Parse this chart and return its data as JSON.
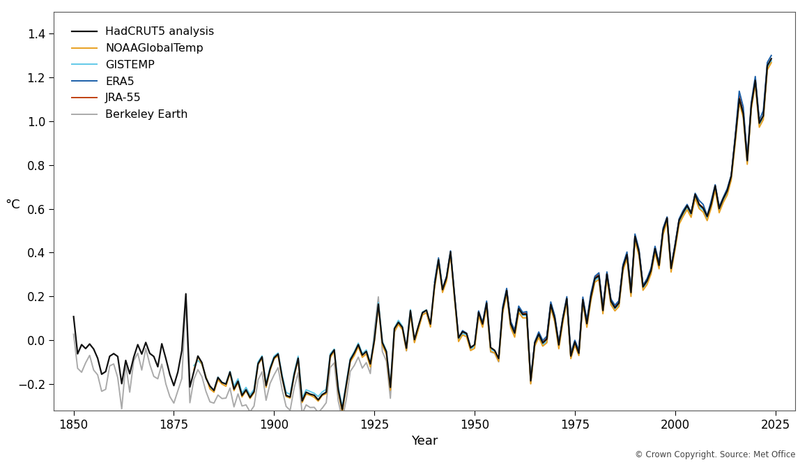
{
  "title": "",
  "xlabel": "Year",
  "ylabel": "°C",
  "copyright_text": "© Crown Copyright. Source: Met Office",
  "xlim": [
    1845,
    2030
  ],
  "ylim": [
    -0.32,
    1.5
  ],
  "yticks": [
    -0.2,
    0.0,
    0.2,
    0.4,
    0.6,
    0.8,
    1.0,
    1.2,
    1.4
  ],
  "xticks": [
    1850,
    1875,
    1900,
    1925,
    1950,
    1975,
    2000,
    2025
  ],
  "series": {
    "HadCRUT5 analysis": {
      "color": "#111111",
      "lw": 1.6,
      "zorder": 6
    },
    "NOAAGlobalTemp": {
      "color": "#e8a020",
      "lw": 1.4,
      "zorder": 5
    },
    "GISTEMP": {
      "color": "#60c8e8",
      "lw": 1.4,
      "zorder": 4
    },
    "ERA5": {
      "color": "#1a5fa8",
      "lw": 1.4,
      "zorder": 4
    },
    "JRA-55": {
      "color": "#c04010",
      "lw": 1.4,
      "zorder": 4
    },
    "Berkeley Earth": {
      "color": "#aaaaaa",
      "lw": 1.4,
      "zorder": 3
    }
  },
  "hadcrut5_years": [
    1850,
    1851,
    1852,
    1853,
    1854,
    1855,
    1856,
    1857,
    1858,
    1859,
    1860,
    1861,
    1862,
    1863,
    1864,
    1865,
    1866,
    1867,
    1868,
    1869,
    1870,
    1871,
    1872,
    1873,
    1874,
    1875,
    1876,
    1877,
    1878,
    1879,
    1880,
    1881,
    1882,
    1883,
    1884,
    1885,
    1886,
    1887,
    1888,
    1889,
    1890,
    1891,
    1892,
    1893,
    1894,
    1895,
    1896,
    1897,
    1898,
    1899,
    1900,
    1901,
    1902,
    1903,
    1904,
    1905,
    1906,
    1907,
    1908,
    1909,
    1910,
    1911,
    1912,
    1913,
    1914,
    1915,
    1916,
    1917,
    1918,
    1919,
    1920,
    1921,
    1922,
    1923,
    1924,
    1925,
    1926,
    1927,
    1928,
    1929,
    1930,
    1931,
    1932,
    1933,
    1934,
    1935,
    1936,
    1937,
    1938,
    1939,
    1940,
    1941,
    1942,
    1943,
    1944,
    1945,
    1946,
    1947,
    1948,
    1949,
    1950,
    1951,
    1952,
    1953,
    1954,
    1955,
    1956,
    1957,
    1958,
    1959,
    1960,
    1961,
    1962,
    1963,
    1964,
    1965,
    1966,
    1967,
    1968,
    1969,
    1970,
    1971,
    1972,
    1973,
    1974,
    1975,
    1976,
    1977,
    1978,
    1979,
    1980,
    1981,
    1982,
    1983,
    1984,
    1985,
    1986,
    1987,
    1988,
    1989,
    1990,
    1991,
    1992,
    1993,
    1994,
    1995,
    1996,
    1997,
    1998,
    1999,
    2000,
    2001,
    2002,
    2003,
    2004,
    2005,
    2006,
    2007,
    2008,
    2009,
    2010,
    2011,
    2012,
    2013,
    2014,
    2015,
    2016,
    2017,
    2018,
    2019,
    2020,
    2021,
    2022,
    2023,
    2024
  ],
  "hadcrut5_vals": [
    0.108,
    -0.062,
    -0.02,
    -0.038,
    -0.017,
    -0.04,
    -0.082,
    -0.155,
    -0.143,
    -0.073,
    -0.061,
    -0.074,
    -0.198,
    -0.092,
    -0.153,
    -0.077,
    -0.02,
    -0.063,
    -0.01,
    -0.06,
    -0.074,
    -0.121,
    -0.016,
    -0.083,
    -0.156,
    -0.207,
    -0.145,
    -0.046,
    0.212,
    -0.213,
    -0.143,
    -0.072,
    -0.102,
    -0.173,
    -0.209,
    -0.229,
    -0.17,
    -0.193,
    -0.2,
    -0.145,
    -0.223,
    -0.187,
    -0.252,
    -0.226,
    -0.261,
    -0.234,
    -0.107,
    -0.076,
    -0.207,
    -0.131,
    -0.08,
    -0.063,
    -0.168,
    -0.252,
    -0.259,
    -0.158,
    -0.082,
    -0.277,
    -0.237,
    -0.246,
    -0.251,
    -0.272,
    -0.248,
    -0.237,
    -0.07,
    -0.044,
    -0.225,
    -0.316,
    -0.202,
    -0.09,
    -0.058,
    -0.02,
    -0.068,
    -0.051,
    -0.108,
    0.0,
    0.165,
    -0.011,
    -0.052,
    -0.215,
    0.053,
    0.082,
    0.059,
    -0.036,
    0.135,
    0.003,
    0.066,
    0.126,
    0.137,
    0.074,
    0.25,
    0.368,
    0.231,
    0.286,
    0.404,
    0.203,
    0.011,
    0.039,
    0.031,
    -0.034,
    -0.02,
    0.128,
    0.074,
    0.17,
    -0.033,
    -0.046,
    -0.083,
    0.14,
    0.227,
    0.075,
    0.033,
    0.144,
    0.118,
    0.119,
    -0.185,
    -0.013,
    0.028,
    -0.012,
    0.005,
    0.163,
    0.099,
    -0.021,
    0.098,
    0.19,
    -0.072,
    -0.008,
    -0.059,
    0.185,
    0.076,
    0.198,
    0.282,
    0.294,
    0.136,
    0.302,
    0.178,
    0.148,
    0.17,
    0.334,
    0.391,
    0.218,
    0.474,
    0.403,
    0.244,
    0.271,
    0.318,
    0.418,
    0.342,
    0.501,
    0.558,
    0.328,
    0.431,
    0.547,
    0.583,
    0.614,
    0.579,
    0.666,
    0.619,
    0.603,
    0.565,
    0.621,
    0.705,
    0.601,
    0.646,
    0.682,
    0.749,
    0.92,
    1.102,
    1.035,
    0.82,
    1.072,
    1.186,
    0.991,
    1.025,
    1.253,
    1.285
  ],
  "noaa_years": [
    1880,
    1881,
    1882,
    1883,
    1884,
    1885,
    1886,
    1887,
    1888,
    1889,
    1890,
    1891,
    1892,
    1893,
    1894,
    1895,
    1896,
    1897,
    1898,
    1899,
    1900,
    1901,
    1902,
    1903,
    1904,
    1905,
    1906,
    1907,
    1908,
    1909,
    1910,
    1911,
    1912,
    1913,
    1914,
    1915,
    1916,
    1917,
    1918,
    1919,
    1920,
    1921,
    1922,
    1923,
    1924,
    1925,
    1926,
    1927,
    1928,
    1929,
    1930,
    1931,
    1932,
    1933,
    1934,
    1935,
    1936,
    1937,
    1938,
    1939,
    1940,
    1941,
    1942,
    1943,
    1944,
    1945,
    1946,
    1947,
    1948,
    1949,
    1950,
    1951,
    1952,
    1953,
    1954,
    1955,
    1956,
    1957,
    1958,
    1959,
    1960,
    1961,
    1962,
    1963,
    1964,
    1965,
    1966,
    1967,
    1968,
    1969,
    1970,
    1971,
    1972,
    1973,
    1974,
    1975,
    1976,
    1977,
    1978,
    1979,
    1980,
    1981,
    1982,
    1983,
    1984,
    1985,
    1986,
    1987,
    1988,
    1989,
    1990,
    1991,
    1992,
    1993,
    1994,
    1995,
    1996,
    1997,
    1998,
    1999,
    2000,
    2001,
    2002,
    2003,
    2004,
    2005,
    2006,
    2007,
    2008,
    2009,
    2010,
    2011,
    2012,
    2013,
    2014,
    2015,
    2016,
    2017,
    2018,
    2019,
    2020,
    2021,
    2022,
    2023,
    2024
  ],
  "noaa_vals": [
    -0.135,
    -0.075,
    -0.11,
    -0.167,
    -0.222,
    -0.237,
    -0.18,
    -0.2,
    -0.21,
    -0.15,
    -0.23,
    -0.193,
    -0.259,
    -0.231,
    -0.266,
    -0.24,
    -0.111,
    -0.082,
    -0.215,
    -0.138,
    -0.085,
    -0.07,
    -0.173,
    -0.257,
    -0.264,
    -0.163,
    -0.088,
    -0.284,
    -0.246,
    -0.251,
    -0.26,
    -0.278,
    -0.252,
    -0.244,
    -0.08,
    -0.051,
    -0.234,
    -0.33,
    -0.211,
    -0.099,
    -0.07,
    -0.029,
    -0.078,
    -0.062,
    -0.122,
    -0.009,
    0.155,
    -0.022,
    -0.064,
    -0.228,
    0.04,
    0.072,
    0.049,
    -0.047,
    0.122,
    -0.011,
    0.051,
    0.115,
    0.126,
    0.06,
    0.235,
    0.356,
    0.218,
    0.27,
    0.391,
    0.188,
    -0.006,
    0.024,
    0.016,
    -0.047,
    -0.037,
    0.111,
    0.059,
    0.152,
    -0.05,
    -0.058,
    -0.096,
    0.123,
    0.212,
    0.058,
    0.014,
    0.127,
    0.102,
    0.102,
    -0.199,
    -0.027,
    0.012,
    -0.027,
    -0.012,
    0.148,
    0.083,
    -0.039,
    0.08,
    0.173,
    -0.084,
    -0.022,
    -0.07,
    0.17,
    0.059,
    0.18,
    0.265,
    0.277,
    0.121,
    0.283,
    0.162,
    0.134,
    0.154,
    0.316,
    0.374,
    0.2,
    0.456,
    0.385,
    0.228,
    0.254,
    0.302,
    0.4,
    0.326,
    0.482,
    0.54,
    0.311,
    0.414,
    0.529,
    0.565,
    0.596,
    0.561,
    0.648,
    0.601,
    0.585,
    0.546,
    0.603,
    0.686,
    0.582,
    0.628,
    0.663,
    0.731,
    0.899,
    1.083,
    1.017,
    0.803,
    1.054,
    1.168,
    0.972,
    1.007,
    1.234,
    1.267
  ],
  "gistemp_years": [
    1880,
    1881,
    1882,
    1883,
    1884,
    1885,
    1886,
    1887,
    1888,
    1889,
    1890,
    1891,
    1892,
    1893,
    1894,
    1895,
    1896,
    1897,
    1898,
    1899,
    1900,
    1901,
    1902,
    1903,
    1904,
    1905,
    1906,
    1907,
    1908,
    1909,
    1910,
    1911,
    1912,
    1913,
    1914,
    1915,
    1916,
    1917,
    1918,
    1919,
    1920,
    1921,
    1922,
    1923,
    1924,
    1925,
    1926,
    1927,
    1928,
    1929,
    1930,
    1931,
    1932,
    1933,
    1934,
    1935,
    1936,
    1937,
    1938,
    1939,
    1940,
    1941,
    1942,
    1943,
    1944,
    1945,
    1946,
    1947,
    1948,
    1949,
    1950,
    1951,
    1952,
    1953,
    1954,
    1955,
    1956,
    1957,
    1958,
    1959,
    1960,
    1961,
    1962,
    1963,
    1964,
    1965,
    1966,
    1967,
    1968,
    1969,
    1970,
    1971,
    1972,
    1973,
    1974,
    1975,
    1976,
    1977,
    1978,
    1979,
    1980,
    1981,
    1982,
    1983,
    1984,
    1985,
    1986,
    1987,
    1988,
    1989,
    1990,
    1991,
    1992,
    1993,
    1994,
    1995,
    1996,
    1997,
    1998,
    1999,
    2000,
    2001,
    2002,
    2003,
    2004,
    2005,
    2006,
    2007,
    2008,
    2009,
    2010,
    2011,
    2012,
    2013,
    2014,
    2015,
    2016,
    2017,
    2018,
    2019,
    2020,
    2021,
    2022,
    2023,
    2024
  ],
  "gistemp_vals": [
    -0.116,
    -0.092,
    -0.109,
    -0.166,
    -0.216,
    -0.228,
    -0.168,
    -0.192,
    -0.198,
    -0.142,
    -0.209,
    -0.176,
    -0.241,
    -0.215,
    -0.249,
    -0.224,
    -0.099,
    -0.071,
    -0.199,
    -0.124,
    -0.073,
    -0.058,
    -0.158,
    -0.238,
    -0.247,
    -0.148,
    -0.073,
    -0.263,
    -0.226,
    -0.234,
    -0.242,
    -0.257,
    -0.236,
    -0.224,
    -0.062,
    -0.04,
    -0.213,
    -0.305,
    -0.193,
    -0.083,
    -0.052,
    -0.013,
    -0.061,
    -0.044,
    -0.104,
    0.009,
    0.172,
    -0.005,
    -0.047,
    -0.211,
    0.056,
    0.091,
    0.064,
    -0.033,
    0.14,
    -0.001,
    0.063,
    0.129,
    0.139,
    0.068,
    0.25,
    0.37,
    0.232,
    0.281,
    0.403,
    0.196,
    -0.001,
    0.031,
    0.024,
    -0.039,
    -0.027,
    0.122,
    0.072,
    0.163,
    -0.041,
    -0.05,
    -0.087,
    0.135,
    0.219,
    0.066,
    0.024,
    0.14,
    0.115,
    0.112,
    -0.19,
    -0.018,
    0.025,
    -0.02,
    -0.005,
    0.157,
    0.091,
    -0.028,
    0.09,
    0.181,
    -0.075,
    -0.015,
    -0.062,
    0.177,
    0.067,
    0.19,
    0.273,
    0.286,
    0.131,
    0.292,
    0.172,
    0.144,
    0.163,
    0.326,
    0.383,
    0.21,
    0.465,
    0.395,
    0.237,
    0.264,
    0.312,
    0.41,
    0.335,
    0.491,
    0.549,
    0.321,
    0.424,
    0.538,
    0.573,
    0.604,
    0.57,
    0.658,
    0.61,
    0.595,
    0.556,
    0.613,
    0.695,
    0.591,
    0.638,
    0.673,
    0.741,
    0.91,
    1.093,
    1.026,
    0.812,
    1.063,
    1.177,
    0.982,
    1.017,
    1.244,
    1.276
  ],
  "era5_years": [
    1940,
    1941,
    1942,
    1943,
    1944,
    1945,
    1946,
    1947,
    1948,
    1949,
    1950,
    1951,
    1952,
    1953,
    1954,
    1955,
    1956,
    1957,
    1958,
    1959,
    1960,
    1961,
    1962,
    1963,
    1964,
    1965,
    1966,
    1967,
    1968,
    1969,
    1970,
    1971,
    1972,
    1973,
    1974,
    1975,
    1976,
    1977,
    1978,
    1979,
    1980,
    1981,
    1982,
    1983,
    1984,
    1985,
    1986,
    1987,
    1988,
    1989,
    1990,
    1991,
    1992,
    1993,
    1994,
    1995,
    1996,
    1997,
    1998,
    1999,
    2000,
    2001,
    2002,
    2003,
    2004,
    2005,
    2006,
    2007,
    2008,
    2009,
    2010,
    2011,
    2012,
    2013,
    2014,
    2015,
    2016,
    2017,
    2018,
    2019,
    2020,
    2021,
    2022,
    2023,
    2024
  ],
  "era5_vals": [
    0.265,
    0.376,
    0.237,
    0.291,
    0.408,
    0.204,
    0.01,
    0.044,
    0.032,
    -0.032,
    -0.024,
    0.134,
    0.081,
    0.179,
    -0.038,
    -0.05,
    -0.088,
    0.152,
    0.237,
    0.086,
    0.046,
    0.156,
    0.127,
    0.131,
    -0.183,
    -0.007,
    0.038,
    -0.001,
    0.018,
    0.175,
    0.112,
    -0.01,
    0.104,
    0.199,
    -0.059,
    -0.0,
    -0.044,
    0.197,
    0.091,
    0.214,
    0.292,
    0.308,
    0.151,
    0.312,
    0.188,
    0.16,
    0.181,
    0.345,
    0.403,
    0.231,
    0.485,
    0.415,
    0.251,
    0.281,
    0.329,
    0.429,
    0.352,
    0.512,
    0.563,
    0.335,
    0.44,
    0.554,
    0.592,
    0.62,
    0.583,
    0.671,
    0.638,
    0.62,
    0.569,
    0.636,
    0.71,
    0.61,
    0.652,
    0.692,
    0.754,
    0.934,
    1.137,
    1.065,
    0.835,
    1.085,
    1.204,
    1.005,
    1.048,
    1.268,
    1.3
  ],
  "jra55_years": [
    1958,
    1959,
    1960,
    1961,
    1962,
    1963,
    1964,
    1965,
    1966,
    1967,
    1968,
    1969,
    1970,
    1971,
    1972,
    1973,
    1974,
    1975,
    1976,
    1977,
    1978,
    1979,
    1980,
    1981,
    1982,
    1983,
    1984,
    1985,
    1986,
    1987,
    1988,
    1989,
    1990,
    1991,
    1992,
    1993,
    1994,
    1995,
    1996,
    1997,
    1998,
    1999,
    2000,
    2001,
    2002,
    2003,
    2004,
    2005,
    2006,
    2007,
    2008,
    2009,
    2010,
    2011,
    2012,
    2013,
    2014,
    2015,
    2016,
    2017,
    2018,
    2019,
    2020,
    2021,
    2022,
    2023
  ],
  "jra55_vals": [
    0.231,
    0.082,
    0.041,
    0.15,
    0.121,
    0.125,
    -0.191,
    -0.011,
    0.03,
    -0.01,
    0.01,
    0.165,
    0.103,
    -0.017,
    0.097,
    0.185,
    -0.072,
    -0.004,
    -0.052,
    0.189,
    0.083,
    0.202,
    0.287,
    0.302,
    0.148,
    0.306,
    0.183,
    0.153,
    0.174,
    0.338,
    0.395,
    0.221,
    0.477,
    0.406,
    0.247,
    0.274,
    0.321,
    0.422,
    0.344,
    0.504,
    0.56,
    0.33,
    0.434,
    0.55,
    0.586,
    0.616,
    0.581,
    0.665,
    0.622,
    0.605,
    0.562,
    0.624,
    0.703,
    0.604,
    0.645,
    0.683,
    0.749,
    0.926,
    1.115,
    1.041,
    0.829,
    1.068,
    1.187,
    0.991,
    1.022,
    1.253
  ],
  "berkeley_years": [
    1850,
    1851,
    1852,
    1853,
    1854,
    1855,
    1856,
    1857,
    1858,
    1859,
    1860,
    1861,
    1862,
    1863,
    1864,
    1865,
    1866,
    1867,
    1868,
    1869,
    1870,
    1871,
    1872,
    1873,
    1874,
    1875,
    1876,
    1877,
    1878,
    1879,
    1880,
    1881,
    1882,
    1883,
    1884,
    1885,
    1886,
    1887,
    1888,
    1889,
    1890,
    1891,
    1892,
    1893,
    1894,
    1895,
    1896,
    1897,
    1898,
    1899,
    1900,
    1901,
    1902,
    1903,
    1904,
    1905,
    1906,
    1907,
    1908,
    1909,
    1910,
    1911,
    1912,
    1913,
    1914,
    1915,
    1916,
    1917,
    1918,
    1919,
    1920,
    1921,
    1922,
    1923,
    1924,
    1925,
    1926,
    1927,
    1928,
    1929,
    1930,
    1931,
    1932,
    1933,
    1934,
    1935,
    1936,
    1937,
    1938,
    1939,
    1940,
    1941,
    1942,
    1943,
    1944,
    1945,
    1946,
    1947,
    1948,
    1949,
    1950,
    1951,
    1952,
    1953,
    1954,
    1955,
    1956,
    1957,
    1958,
    1959,
    1960,
    1961,
    1962,
    1963,
    1964,
    1965,
    1966,
    1967,
    1968,
    1969,
    1970,
    1971,
    1972,
    1973,
    1974,
    1975,
    1976,
    1977,
    1978,
    1979,
    1980,
    1981,
    1982,
    1983,
    1984,
    1985,
    1986,
    1987,
    1988,
    1989,
    1990,
    1991,
    1992,
    1993,
    1994,
    1995,
    1996,
    1997,
    1998,
    1999,
    2000,
    2001,
    2002,
    2003,
    2004,
    2005,
    2006,
    2007,
    2008,
    2009,
    2010,
    2011,
    2012,
    2013,
    2014,
    2015,
    2016,
    2017,
    2018,
    2019,
    2020,
    2021,
    2022,
    2023,
    2024
  ],
  "berkeley_vals": [
    0.028,
    -0.128,
    -0.146,
    -0.103,
    -0.069,
    -0.136,
    -0.158,
    -0.233,
    -0.224,
    -0.117,
    -0.108,
    -0.17,
    -0.313,
    -0.109,
    -0.237,
    -0.093,
    -0.059,
    -0.136,
    -0.037,
    -0.11,
    -0.165,
    -0.176,
    -0.109,
    -0.199,
    -0.257,
    -0.287,
    -0.23,
    -0.174,
    0.188,
    -0.285,
    -0.178,
    -0.134,
    -0.166,
    -0.233,
    -0.281,
    -0.287,
    -0.25,
    -0.266,
    -0.264,
    -0.218,
    -0.304,
    -0.245,
    -0.3,
    -0.295,
    -0.327,
    -0.3,
    -0.181,
    -0.144,
    -0.274,
    -0.197,
    -0.158,
    -0.125,
    -0.225,
    -0.302,
    -0.32,
    -0.218,
    -0.148,
    -0.335,
    -0.295,
    -0.307,
    -0.306,
    -0.33,
    -0.31,
    -0.285,
    -0.124,
    -0.103,
    -0.277,
    -0.359,
    -0.271,
    -0.142,
    -0.115,
    -0.077,
    -0.127,
    -0.102,
    -0.152,
    0.043,
    0.198,
    -0.052,
    -0.095,
    -0.265,
    0.036,
    0.074,
    0.054,
    -0.049,
    0.13,
    -0.009,
    0.053,
    0.124,
    0.124,
    0.064,
    0.247,
    0.366,
    0.229,
    0.286,
    0.401,
    0.204,
    0.006,
    0.037,
    0.028,
    -0.041,
    -0.027,
    0.122,
    0.069,
    0.163,
    -0.054,
    -0.059,
    -0.099,
    0.132,
    0.223,
    0.069,
    0.027,
    0.139,
    0.113,
    0.114,
    -0.198,
    -0.022,
    0.017,
    -0.022,
    -0.01,
    0.151,
    0.09,
    -0.026,
    0.09,
    0.18,
    -0.08,
    -0.016,
    -0.065,
    0.178,
    0.073,
    0.193,
    0.28,
    0.29,
    0.135,
    0.297,
    0.171,
    0.146,
    0.161,
    0.329,
    0.388,
    0.214,
    0.468,
    0.399,
    0.239,
    0.268,
    0.318,
    0.413,
    0.34,
    0.496,
    0.553,
    0.326,
    0.428,
    0.54,
    0.577,
    0.609,
    0.574,
    0.656,
    0.611,
    0.597,
    0.558,
    0.617,
    0.7,
    0.593,
    0.633,
    0.668,
    0.738,
    0.918,
    1.103,
    1.033,
    0.817,
    1.065,
    1.181,
    0.986,
    1.019,
    1.243,
    1.274
  ]
}
